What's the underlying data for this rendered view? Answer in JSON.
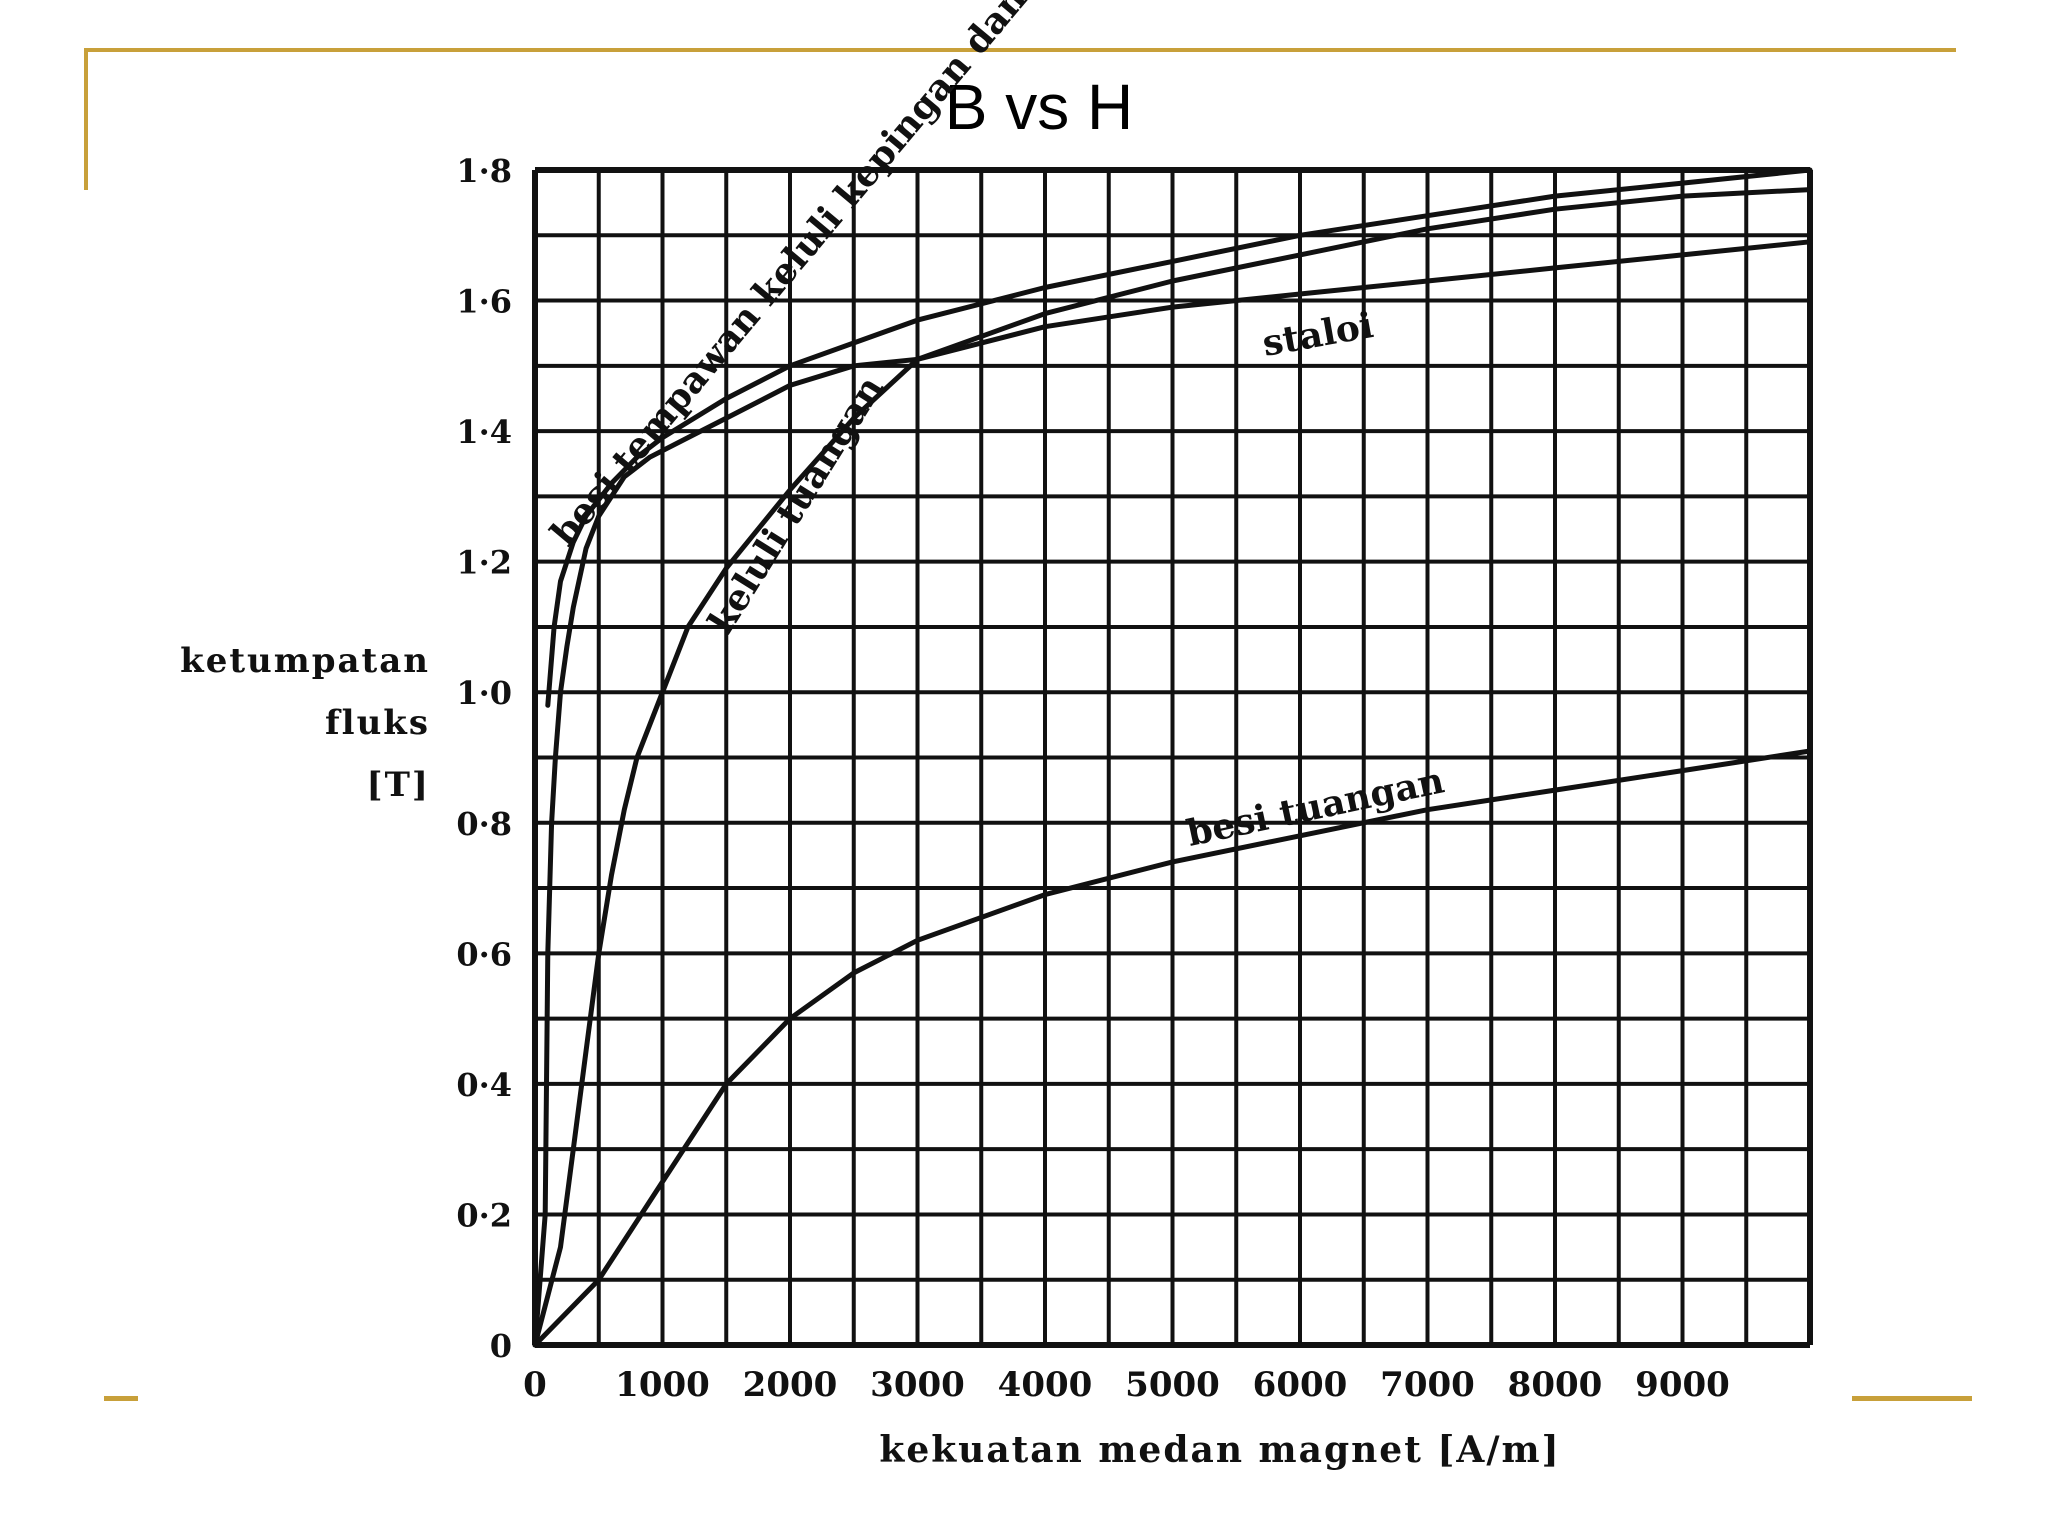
{
  "slide": {
    "title": "B vs H",
    "accent_color": "#c8a03a"
  },
  "chart_data": {
    "type": "line",
    "title": "B vs H",
    "xlabel": "kekuatan medan magnet [A/m]",
    "ylabel_lines": [
      "ketumpatan",
      "fluks",
      "[T]"
    ],
    "xlim": [
      0,
      10000
    ],
    "ylim": [
      0,
      1.8
    ],
    "grid": true,
    "x_tick_labels": [
      "0",
      "1000",
      "2000",
      "3000",
      "4000",
      "5000",
      "6000",
      "7000",
      "8000",
      "9000"
    ],
    "x_tick_values": [
      0,
      1000,
      2000,
      3000,
      4000,
      5000,
      6000,
      7000,
      8000,
      9000
    ],
    "y_tick_labels": [
      "0",
      "0·2",
      "0·4",
      "0·6",
      "0·8",
      "1·0",
      "1·2",
      "1·4",
      "1·6",
      "1·8"
    ],
    "y_tick_values": [
      0,
      0.2,
      0.4,
      0.6,
      0.8,
      1.0,
      1.2,
      1.4,
      1.6,
      1.8
    ],
    "series": [
      {
        "name": "besi tempawan keluli kepingan dan lembut",
        "x": [
          100,
          150,
          200,
          300,
          400,
          600,
          800,
          1000,
          1500,
          2000,
          3000,
          4000,
          5000,
          6000,
          7000,
          8000,
          9000,
          10000
        ],
        "y": [
          0.98,
          1.1,
          1.17,
          1.23,
          1.27,
          1.32,
          1.36,
          1.39,
          1.45,
          1.5,
          1.57,
          1.62,
          1.66,
          1.7,
          1.73,
          1.76,
          1.78,
          1.8
        ]
      },
      {
        "name": "staloi",
        "x": [
          0,
          80,
          100,
          130,
          160,
          200,
          250,
          300,
          400,
          500,
          700,
          900,
          1200,
          1500,
          2000,
          2500,
          3000,
          4000,
          5000,
          6000,
          7000,
          8000,
          9000,
          10000
        ],
        "y": [
          0,
          0.2,
          0.6,
          0.8,
          0.9,
          1.0,
          1.07,
          1.13,
          1.22,
          1.27,
          1.33,
          1.36,
          1.39,
          1.42,
          1.47,
          1.5,
          1.51,
          1.56,
          1.59,
          1.61,
          1.63,
          1.65,
          1.67,
          1.69
        ]
      },
      {
        "name": "keluli tuangan",
        "x": [
          0,
          200,
          300,
          400,
          500,
          600,
          700,
          800,
          1000,
          1200,
          1500,
          2000,
          2500,
          3000,
          4000,
          5000,
          6000,
          7000,
          8000,
          9000,
          10000
        ],
        "y": [
          0,
          0.15,
          0.3,
          0.45,
          0.6,
          0.72,
          0.82,
          0.9,
          1.0,
          1.1,
          1.19,
          1.31,
          1.42,
          1.51,
          1.58,
          1.63,
          1.67,
          1.71,
          1.74,
          1.76,
          1.77
        ]
      },
      {
        "name": "besi tuangan",
        "x": [
          0,
          500,
          1000,
          1500,
          2000,
          2500,
          3000,
          4000,
          5000,
          6000,
          7000,
          8000,
          9000,
          10000
        ],
        "y": [
          0,
          0.1,
          0.25,
          0.4,
          0.5,
          0.57,
          0.62,
          0.69,
          0.74,
          0.78,
          0.82,
          0.85,
          0.88,
          0.91
        ]
      }
    ]
  }
}
